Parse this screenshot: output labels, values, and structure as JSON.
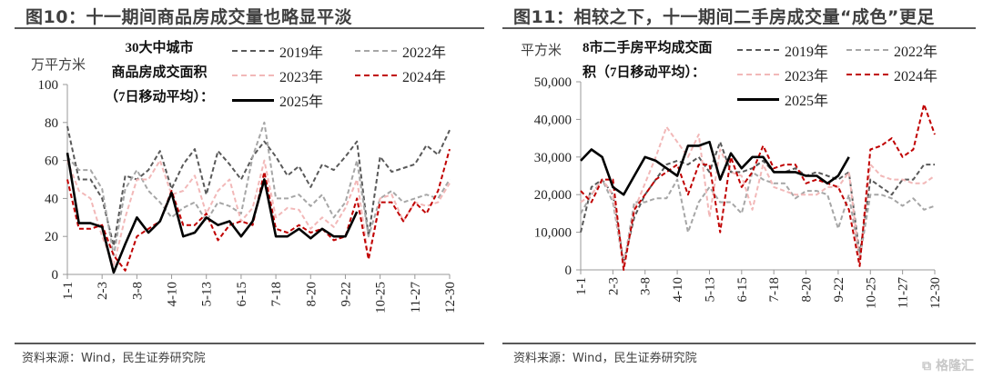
{
  "left": {
    "title": "图10：十一期间商品房成交量也略显平淡",
    "unit": "万平方米",
    "desc": [
      "30大中城市",
      "商品房成交面积",
      "（7日移动平均）："
    ],
    "source": "资料来源：Wind，民生证券研究院"
  },
  "right": {
    "title": "图11：相较之下，十一期间二手房成交量“成色”更足",
    "unit": "平方米",
    "desc": [
      "8市二手房平均成交面",
      "积（7日移动平均）："
    ],
    "source": "资料来源：Wind，民生证券研究院"
  },
  "watermark": "格隆汇",
  "colors": {
    "2019": "#595959",
    "2022": "#a6a6a6",
    "2023": "#f2b8b8",
    "2024": "#c00000",
    "2025": "#000000"
  },
  "chart_data": [
    {
      "type": "line",
      "title": "30大中城市商品房成交面积（7日移动平均）",
      "ylabel": "万平方米",
      "ylim": [
        0,
        100
      ],
      "yticks": [
        "0",
        "20",
        "40",
        "60",
        "80",
        "100"
      ],
      "ytick_values": [
        0,
        20,
        40,
        60,
        80,
        100
      ],
      "xticks": [
        "1-1",
        "2-3",
        "3-8",
        "4-10",
        "5-13",
        "6-15",
        "7-18",
        "8-20",
        "9-22",
        "10-25",
        "11-27",
        "12-30"
      ],
      "x_days": [
        0,
        11,
        22,
        33,
        44,
        55,
        66,
        77,
        88,
        99,
        110,
        121,
        132,
        143,
        154,
        165,
        176,
        187,
        198,
        209,
        220,
        231,
        242,
        253,
        264,
        275,
        286,
        297,
        308,
        319,
        330,
        341,
        352,
        363
      ],
      "legend_placement": "top",
      "series": [
        {
          "name": "2019年",
          "style": "dashed",
          "values": [
            78,
            50,
            50,
            40,
            15,
            52,
            50,
            55,
            65,
            45,
            58,
            66,
            42,
            65,
            58,
            50,
            62,
            70,
            62,
            52,
            57,
            46,
            58,
            55,
            62,
            70,
            20,
            62,
            54,
            56,
            58,
            68,
            63,
            76
          ]
        },
        {
          "name": "2022年",
          "style": "dashed",
          "values": [
            62,
            55,
            55,
            45,
            10,
            45,
            55,
            44,
            38,
            30,
            35,
            38,
            28,
            38,
            36,
            32,
            62,
            80,
            40,
            40,
            42,
            36,
            42,
            30,
            38,
            60,
            20,
            40,
            44,
            38,
            40,
            42,
            40,
            50
          ]
        },
        {
          "name": "2023年",
          "style": "dashed",
          "values": [
            60,
            44,
            40,
            20,
            5,
            30,
            50,
            50,
            60,
            42,
            44,
            52,
            32,
            44,
            50,
            28,
            35,
            60,
            30,
            35,
            34,
            24,
            30,
            25,
            35,
            50,
            8,
            40,
            42,
            28,
            38,
            36,
            38,
            48
          ]
        },
        {
          "name": "2024年",
          "style": "dashed",
          "values": [
            50,
            24,
            24,
            26,
            10,
            2,
            20,
            24,
            28,
            44,
            26,
            26,
            32,
            18,
            26,
            28,
            26,
            54,
            24,
            22,
            26,
            22,
            24,
            18,
            20,
            40,
            8,
            38,
            38,
            28,
            38,
            32,
            44,
            66
          ]
        },
        {
          "name": "2025年",
          "style": "solid",
          "values": [
            64,
            27,
            27,
            25,
            1,
            16,
            30,
            22,
            28,
            43,
            20,
            22,
            30,
            26,
            28,
            20,
            28,
            50,
            20,
            20,
            24,
            19,
            24,
            20,
            20,
            33
          ]
        }
      ]
    },
    {
      "type": "line",
      "title": "8市二手房平均成交面积（7日移动平均）",
      "ylabel": "平方米",
      "ylim": [
        0,
        50000
      ],
      "yticks": [
        "0",
        "10,000",
        "20,000",
        "30,000",
        "40,000",
        "50,000"
      ],
      "ytick_values": [
        0,
        10000,
        20000,
        30000,
        40000,
        50000
      ],
      "xticks": [
        "1-1",
        "2-3",
        "3-8",
        "4-10",
        "5-13",
        "6-15",
        "7-18",
        "8-20",
        "9-22",
        "10-25",
        "11-27",
        "12-30"
      ],
      "x_days": [
        0,
        11,
        22,
        33,
        44,
        55,
        66,
        77,
        88,
        99,
        110,
        121,
        132,
        143,
        154,
        165,
        176,
        187,
        198,
        209,
        220,
        231,
        242,
        253,
        264,
        275,
        286,
        297,
        308,
        319,
        330,
        341,
        352,
        363
      ],
      "legend_placement": "top",
      "series": [
        {
          "name": "2019年",
          "style": "dashed",
          "values": [
            10000,
            22000,
            24000,
            20000,
            2000,
            14000,
            20000,
            24000,
            28000,
            29000,
            28000,
            30000,
            26000,
            34000,
            26000,
            26000,
            27000,
            29000,
            26000,
            26000,
            27000,
            25000,
            26000,
            25000,
            24000,
            26000,
            4000,
            24000,
            22000,
            20000,
            24000,
            24000,
            28000,
            28000
          ]
        },
        {
          "name": "2022年",
          "style": "dashed",
          "values": [
            15000,
            20000,
            24000,
            18000,
            1000,
            18000,
            18000,
            19000,
            19000,
            24000,
            10000,
            18000,
            22000,
            18000,
            18000,
            15000,
            26000,
            24000,
            23000,
            23000,
            19000,
            21000,
            21000,
            20000,
            11000,
            20000,
            3000,
            20000,
            20000,
            19000,
            17000,
            19000,
            16000,
            17000
          ]
        },
        {
          "name": "2023年",
          "style": "dashed",
          "values": [
            18000,
            20000,
            24000,
            20000,
            1000,
            16000,
            23000,
            30000,
            38000,
            34000,
            30000,
            36000,
            14000,
            32000,
            26000,
            25000,
            16000,
            28000,
            22000,
            21000,
            20000,
            20000,
            20000,
            22000,
            22000,
            26000,
            2000,
            28000,
            25000,
            24000,
            24000,
            23000,
            23000,
            25000
          ]
        },
        {
          "name": "2024年",
          "style": "dashed",
          "values": [
            21000,
            18000,
            24000,
            24000,
            0,
            16000,
            20000,
            24000,
            26000,
            28000,
            20000,
            28000,
            28000,
            10000,
            30000,
            22000,
            26000,
            33000,
            27000,
            28000,
            28000,
            23000,
            24000,
            23000,
            22000,
            16000,
            1000,
            32000,
            33000,
            35000,
            30000,
            32000,
            44000,
            36000
          ]
        },
        {
          "name": "2025年",
          "style": "solid",
          "values": [
            29000,
            32000,
            30000,
            22000,
            20000,
            25000,
            30000,
            29000,
            27000,
            25000,
            33000,
            33000,
            34000,
            24000,
            31000,
            27000,
            30000,
            30000,
            26000,
            26000,
            26000,
            25000,
            25000,
            23000,
            25000,
            30000
          ]
        }
      ]
    }
  ]
}
